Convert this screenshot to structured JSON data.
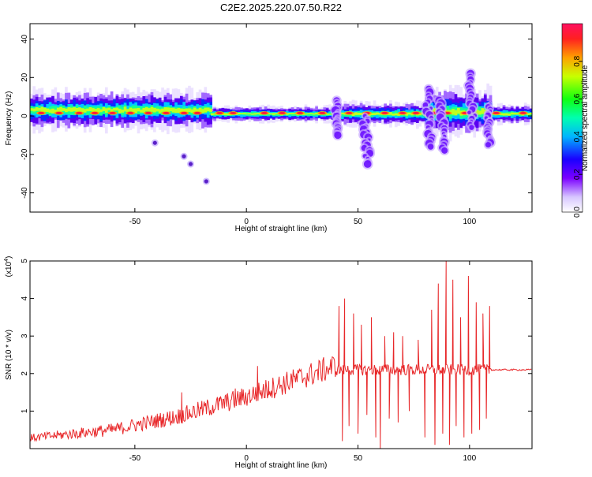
{
  "title": "C2E2.2025.220.07.50.R22",
  "chart_data": [
    {
      "type": "heatmap",
      "xlabel": "Height of straight line (km)",
      "ylabel": "Frequency (Hz)",
      "xlim": [
        -97,
        128
      ],
      "ylim": [
        -50,
        48
      ],
      "xticks": [
        -50,
        0,
        50,
        100
      ],
      "xtick_labels": [
        "-50",
        "0",
        "50",
        "100"
      ],
      "yticks": [
        -40,
        -20,
        0,
        20,
        40
      ],
      "ytick_labels": [
        "-40",
        "-20",
        "0",
        "20",
        "40"
      ],
      "colorbar": {
        "label": "Normalized spectral amplitude",
        "range": [
          0,
          1
        ],
        "ticks": [
          0.0,
          0.2,
          0.4,
          0.6,
          0.8
        ],
        "tick_labels": [
          "0.0",
          "0.2",
          "0.4",
          "0.6",
          "0.8"
        ]
      },
      "band": {
        "center_hz": 1,
        "segments": [
          {
            "x0": -97,
            "x1": -16,
            "center": 3,
            "halfwidth": 5
          },
          {
            "x0": -16,
            "x1": 40,
            "center": 1,
            "halfwidth": 2
          },
          {
            "x0": 40,
            "x1": 80,
            "center": 1,
            "halfwidth": 3
          },
          {
            "x0": 80,
            "x1": 110,
            "center": 2,
            "halfwidth": 6
          },
          {
            "x0": 110,
            "x1": 128,
            "center": 1,
            "halfwidth": 2.5
          }
        ],
        "hotspots": [
          -92,
          -84,
          -75,
          -68,
          -60,
          -52,
          -44,
          -36,
          -28,
          -22,
          -12,
          -6,
          8,
          16,
          24,
          34,
          46,
          54,
          62,
          70,
          76,
          84,
          90,
          98,
          112,
          124
        ]
      },
      "excursions": [
        {
          "x": 40,
          "f0": 8,
          "f1": -10
        },
        {
          "x": 53,
          "f0": 0,
          "f1": -25
        },
        {
          "x": 81,
          "f0": 14,
          "f1": -16
        },
        {
          "x": 87,
          "f0": 8,
          "f1": -18
        },
        {
          "x": 100,
          "f0": 22,
          "f1": -6
        },
        {
          "x": 108,
          "f0": 6,
          "f1": -15
        }
      ],
      "isolated_points": [
        {
          "x": -41,
          "y": -14
        },
        {
          "x": -28,
          "y": -21
        },
        {
          "x": -25,
          "y": -25
        },
        {
          "x": -18,
          "y": -34
        }
      ]
    },
    {
      "type": "line",
      "xlabel": "Height of straight line (km)",
      "ylabel": "SNR (10 * v/v)",
      "yscale_label": "(x10",
      "yscale_exp": "4",
      "yscale_close": ")",
      "xlim": [
        -97,
        128
      ],
      "ylim": [
        0,
        5
      ],
      "xticks": [
        -50,
        0,
        50,
        100
      ],
      "xtick_labels": [
        "-50",
        "0",
        "50",
        "100"
      ],
      "yticks": [
        1,
        2,
        3,
        4,
        5
      ],
      "ytick_labels": [
        "1",
        "2",
        "3",
        "4",
        "5"
      ],
      "color": "#e8282a",
      "trend": [
        {
          "x": -97,
          "y": 0.25
        },
        {
          "x": -60,
          "y": 0.45
        },
        {
          "x": -30,
          "y": 0.8
        },
        {
          "x": 0,
          "y": 1.3
        },
        {
          "x": 20,
          "y": 1.7
        },
        {
          "x": 40,
          "y": 2.1
        },
        {
          "x": 128,
          "y": 2.1
        }
      ],
      "spikes": [
        {
          "x": 41.5,
          "y": 3.8
        },
        {
          "x": 43,
          "y": 0.2
        },
        {
          "x": 44,
          "y": 4.0
        },
        {
          "x": 46,
          "y": 0.6
        },
        {
          "x": 48,
          "y": 3.6
        },
        {
          "x": 50,
          "y": 0.4
        },
        {
          "x": 51.5,
          "y": 3.3
        },
        {
          "x": 54,
          "y": 0.9
        },
        {
          "x": 56,
          "y": 3.5
        },
        {
          "x": 58,
          "y": 0.3
        },
        {
          "x": 60,
          "y": 0.0
        },
        {
          "x": 62,
          "y": 3.0
        },
        {
          "x": 64,
          "y": 0.8
        },
        {
          "x": 66,
          "y": 3.1
        },
        {
          "x": 68,
          "y": 0.7
        },
        {
          "x": 70,
          "y": 3.0
        },
        {
          "x": 73,
          "y": 1.0
        },
        {
          "x": 77,
          "y": 2.9
        },
        {
          "x": 80,
          "y": 0.3
        },
        {
          "x": 83,
          "y": 3.7
        },
        {
          "x": 84.5,
          "y": 0.1
        },
        {
          "x": 86,
          "y": 4.4
        },
        {
          "x": 88,
          "y": 0.4
        },
        {
          "x": 89.5,
          "y": 5.0
        },
        {
          "x": 91,
          "y": 0.1
        },
        {
          "x": 92.5,
          "y": 4.5
        },
        {
          "x": 94,
          "y": 0.6
        },
        {
          "x": 96,
          "y": 3.5
        },
        {
          "x": 97.5,
          "y": 0.3
        },
        {
          "x": 99.5,
          "y": 4.6
        },
        {
          "x": 101,
          "y": 0.4
        },
        {
          "x": 103,
          "y": 3.9
        },
        {
          "x": 104.5,
          "y": 0.5
        },
        {
          "x": 106,
          "y": 3.6
        },
        {
          "x": 107.5,
          "y": 0.8
        },
        {
          "x": 109,
          "y": 3.8
        },
        {
          "x": 110,
          "y": 2.1
        }
      ],
      "minor_spikes": [
        {
          "x": -29,
          "y": 1.5
        },
        {
          "x": -12,
          "y": 1.35
        },
        {
          "x": -5,
          "y": 1.6
        },
        {
          "x": 5,
          "y": 2.2
        },
        {
          "x": 10,
          "y": 1.8
        },
        {
          "x": 20,
          "y": 2.0
        }
      ]
    }
  ]
}
